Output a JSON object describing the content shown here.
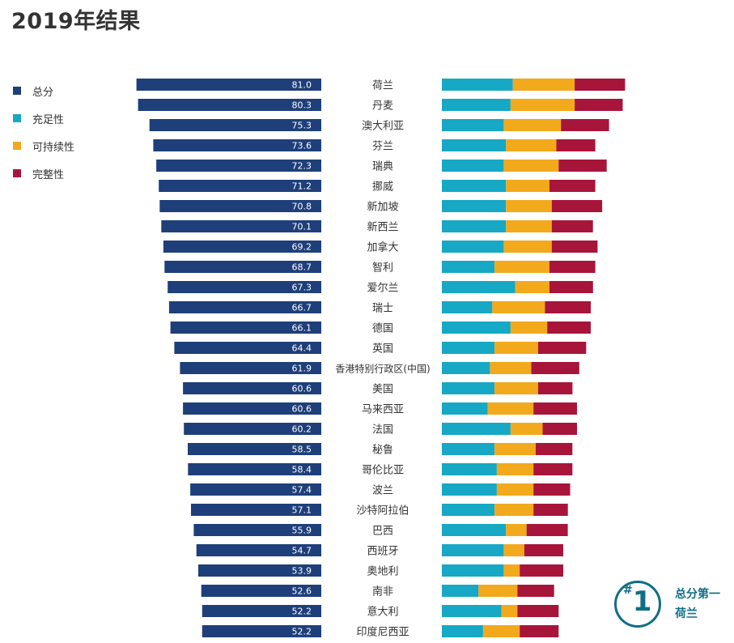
{
  "title": "2019年结果",
  "colors": {
    "overall": "#1e3f7a",
    "adequacy": "#16a8c4",
    "sustainability": "#f2a91c",
    "integrity": "#a8153a",
    "badge": "#0f6e86"
  },
  "legend": [
    {
      "label": "总分",
      "color": "#1e3f7a"
    },
    {
      "label": "充足性",
      "color": "#16a8c4"
    },
    {
      "label": "可持续性",
      "color": "#f2a91c"
    },
    {
      "label": "完整性",
      "color": "#a8153a"
    }
  ],
  "badge": {
    "hash": "#",
    "rank": "1",
    "caption_line1": "总分第一",
    "caption_line2": "荷兰"
  },
  "chart_data": {
    "type": "bar",
    "title": "2019年结果",
    "categories": [
      "荷兰",
      "丹麦",
      "澳大利亚",
      "芬兰",
      "瑞典",
      "挪威",
      "新加坡",
      "新西兰",
      "加拿大",
      "智利",
      "爱尔兰",
      "瑞士",
      "德国",
      "英国",
      "香港特别行政区(中国)",
      "美国",
      "马来西亚",
      "法国",
      "秘鲁",
      "哥伦比亚",
      "波兰",
      "沙特阿拉伯",
      "巴西",
      "西班牙",
      "奥地利",
      "南非",
      "意大利",
      "印度尼西亚"
    ],
    "series": [
      {
        "name": "总分",
        "values": [
          81.0,
          80.3,
          75.3,
          73.6,
          72.3,
          71.2,
          70.8,
          70.1,
          69.2,
          68.7,
          67.3,
          66.7,
          66.1,
          64.4,
          61.9,
          60.6,
          60.6,
          60.2,
          58.5,
          58.4,
          57.4,
          57.1,
          55.9,
          54.7,
          53.9,
          52.6,
          52.2,
          52.2
        ]
      },
      {
        "name": "充足性",
        "values": [
          31,
          30,
          27,
          28,
          27,
          28,
          28,
          28,
          27,
          23,
          32,
          22,
          30,
          23,
          21,
          23,
          20,
          30,
          23,
          24,
          24,
          23,
          28,
          27,
          27,
          16,
          26,
          18
        ]
      },
      {
        "name": "可持续性",
        "values": [
          27,
          28,
          25,
          22,
          24,
          19,
          20,
          20,
          21,
          24,
          15,
          23,
          16,
          19,
          18,
          19,
          20,
          14,
          18,
          16,
          16,
          17,
          9,
          9,
          7,
          17,
          7,
          16
        ]
      },
      {
        "name": "完整性",
        "values": [
          22,
          21,
          21,
          17,
          21,
          20,
          22,
          18,
          20,
          20,
          19,
          20,
          19,
          21,
          21,
          15,
          19,
          15,
          16,
          17,
          16,
          15,
          18,
          17,
          19,
          16,
          18,
          17
        ]
      }
    ],
    "value_labels": [
      "81.0",
      "80.3",
      "75.3",
      "73.6",
      "72.3",
      "71.2",
      "70.8",
      "70.1",
      "69.2",
      "68.7",
      "67.3",
      "66.7",
      "66.1",
      "64.4",
      "61.9",
      "60.6",
      "60.6",
      "60.2",
      "58.5",
      "58.4",
      "57.4",
      "57.1",
      "55.9",
      "54.7",
      "53.9",
      "52.6",
      "52.2",
      "52.2"
    ],
    "xlim": [
      0,
      100
    ],
    "grid": false,
    "legend_position": "top-left"
  }
}
